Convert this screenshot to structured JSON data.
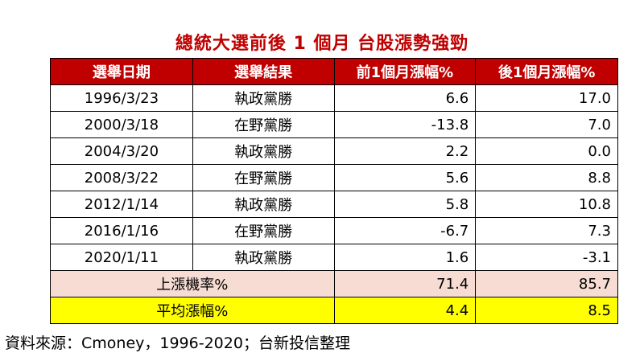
{
  "title": "總統大選前後 1 個月 台股漲勢強勁",
  "table": {
    "headers": [
      "選舉日期",
      "選舉結果",
      "前1個月漲幅%",
      "後1個月漲幅%"
    ],
    "rows": [
      {
        "date": "1996/3/23",
        "result": "執政黨勝",
        "pre": "6.6",
        "post": "17.0"
      },
      {
        "date": "2000/3/18",
        "result": "在野黨勝",
        "pre": "-13.8",
        "post": "7.0"
      },
      {
        "date": "2004/3/20",
        "result": "執政黨勝",
        "pre": "2.2",
        "post": "0.0"
      },
      {
        "date": "2008/3/22",
        "result": "在野黨勝",
        "pre": "5.6",
        "post": "8.8"
      },
      {
        "date": "2012/1/14",
        "result": "執政黨勝",
        "pre": "5.8",
        "post": "10.8"
      },
      {
        "date": "2016/1/16",
        "result": "在野黨勝",
        "pre": "-6.7",
        "post": "7.3"
      },
      {
        "date": "2020/1/11",
        "result": "執政黨勝",
        "pre": "1.6",
        "post": "-3.1"
      }
    ],
    "summary": [
      {
        "label": "上漲機率%",
        "pre": "71.4",
        "post": "85.7",
        "color": "#f6dcd3"
      },
      {
        "label": "平均漲幅%",
        "pre": "4.4",
        "post": "8.5",
        "color": "#ffff00"
      }
    ]
  },
  "source": "資料來源：Cmoney，1996-2020；台新投信整理",
  "colors": {
    "header_bg": "#c00000",
    "title": "#c00000"
  }
}
